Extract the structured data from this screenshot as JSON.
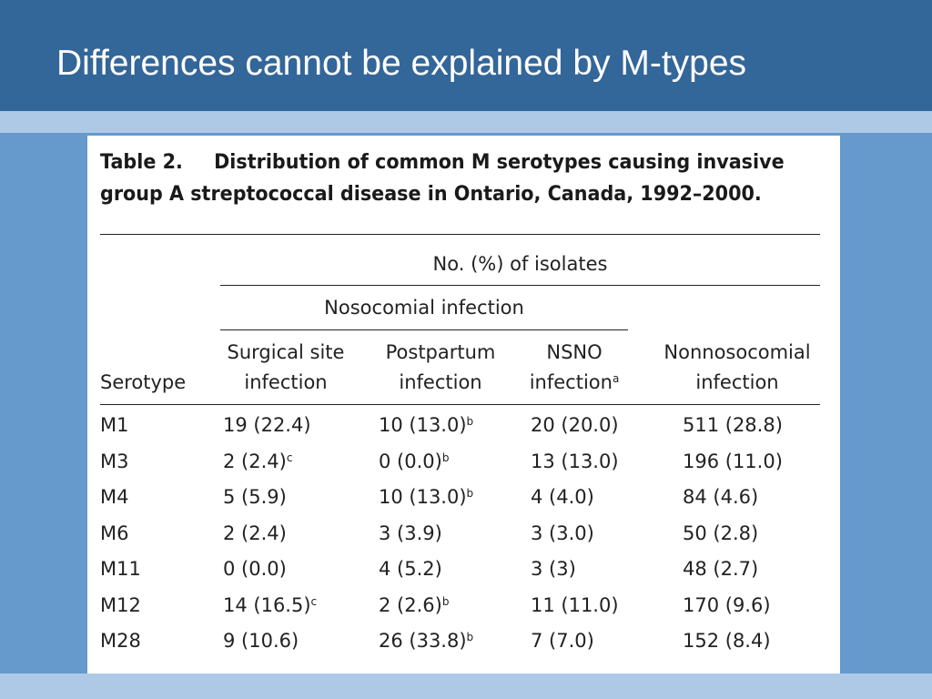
{
  "slide": {
    "title": "Differences cannot be explained by M-types"
  },
  "table": {
    "caption_label": "Table 2.",
    "caption_line1": "Distribution of common M serotypes causing invasive",
    "caption_line2": "group A streptococcal disease in Ontario, Canada, 1992–2000.",
    "spanner_top": "No. (%) of isolates",
    "spanner_nosocomial": "Nosocomial infection",
    "col_serotype": "Serotype",
    "col1_l1": "Surgical site",
    "col1_l2": "infection",
    "col2_l1": "Postpartum",
    "col2_l2": "infection",
    "col3_l1": "NSNO",
    "col3_l2": "infection",
    "col3_sup": "a",
    "col4_l1": "Nonnosocomial",
    "col4_l2": "infection",
    "rows": [
      {
        "serotype": "M1",
        "c1": "19 (22.4)",
        "c1s": "",
        "c2": "10 (13.0)",
        "c2s": "b",
        "c3": "20 (20.0)",
        "c4": "511 (28.8)"
      },
      {
        "serotype": "M3",
        "c1": "2 (2.4)",
        "c1s": "c",
        "c2": "0 (0.0)",
        "c2s": "b",
        "c3": "13 (13.0)",
        "c4": "196 (11.0)"
      },
      {
        "serotype": "M4",
        "c1": "5 (5.9)",
        "c1s": "",
        "c2": "10 (13.0)",
        "c2s": "b",
        "c3": "4 (4.0)",
        "c4": "84 (4.6)"
      },
      {
        "serotype": "M6",
        "c1": "2 (2.4)",
        "c1s": "",
        "c2": "3 (3.9)",
        "c2s": "",
        "c3": "3 (3.0)",
        "c4": "50 (2.8)"
      },
      {
        "serotype": "M11",
        "c1": "0 (0.0)",
        "c1s": "",
        "c2": "4 (5.2)",
        "c2s": "",
        "c3": "3 (3)",
        "c4": "48 (2.7)"
      },
      {
        "serotype": "M12",
        "c1": "14 (16.5)",
        "c1s": "c",
        "c2": "2 (2.6)",
        "c2s": "b",
        "c3": "11 (11.0)",
        "c4": "170 (9.6)"
      },
      {
        "serotype": "M28",
        "c1": "9 (10.6)",
        "c1s": "",
        "c2": "26 (33.8)",
        "c2s": "b",
        "c3": "7 (7.0)",
        "c4": "152 (8.4)"
      }
    ]
  }
}
